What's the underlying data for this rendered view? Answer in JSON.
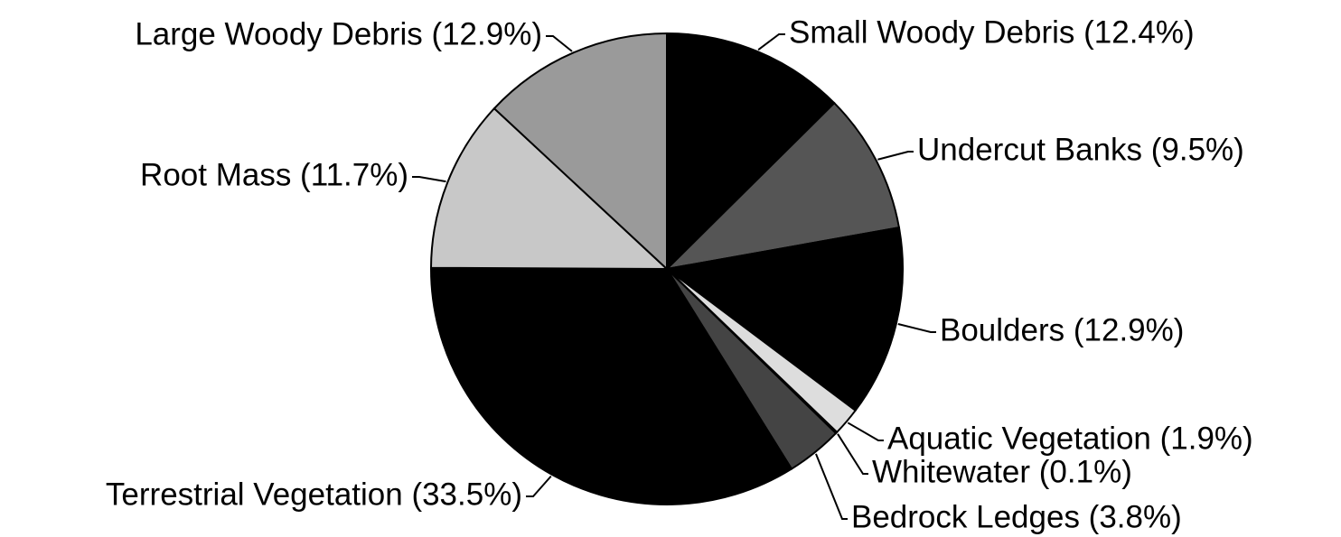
{
  "chart_data": {
    "type": "pie",
    "categories": [
      "Small Woody Debris (12.4%)",
      "Undercut Banks (9.5%)",
      "Boulders (12.9%)",
      "Aquatic Vegetation (1.9%)",
      "Whitewater (0.1%)",
      "Bedrock Ledges (3.8%)",
      "Terrestrial Vegetation (33.5%)",
      "Root Mass (11.7%)",
      "Large Woody Debris (12.9%)"
    ],
    "values": [
      12.4,
      9.5,
      12.9,
      1.9,
      0.1,
      3.8,
      33.5,
      11.7,
      12.9
    ],
    "colors": [
      "#000000",
      "#555555",
      "#000000",
      "#dddddd",
      "#ffffff",
      "#444444",
      "#000000",
      "#c8c8c8",
      "#9a9a9a"
    ]
  }
}
